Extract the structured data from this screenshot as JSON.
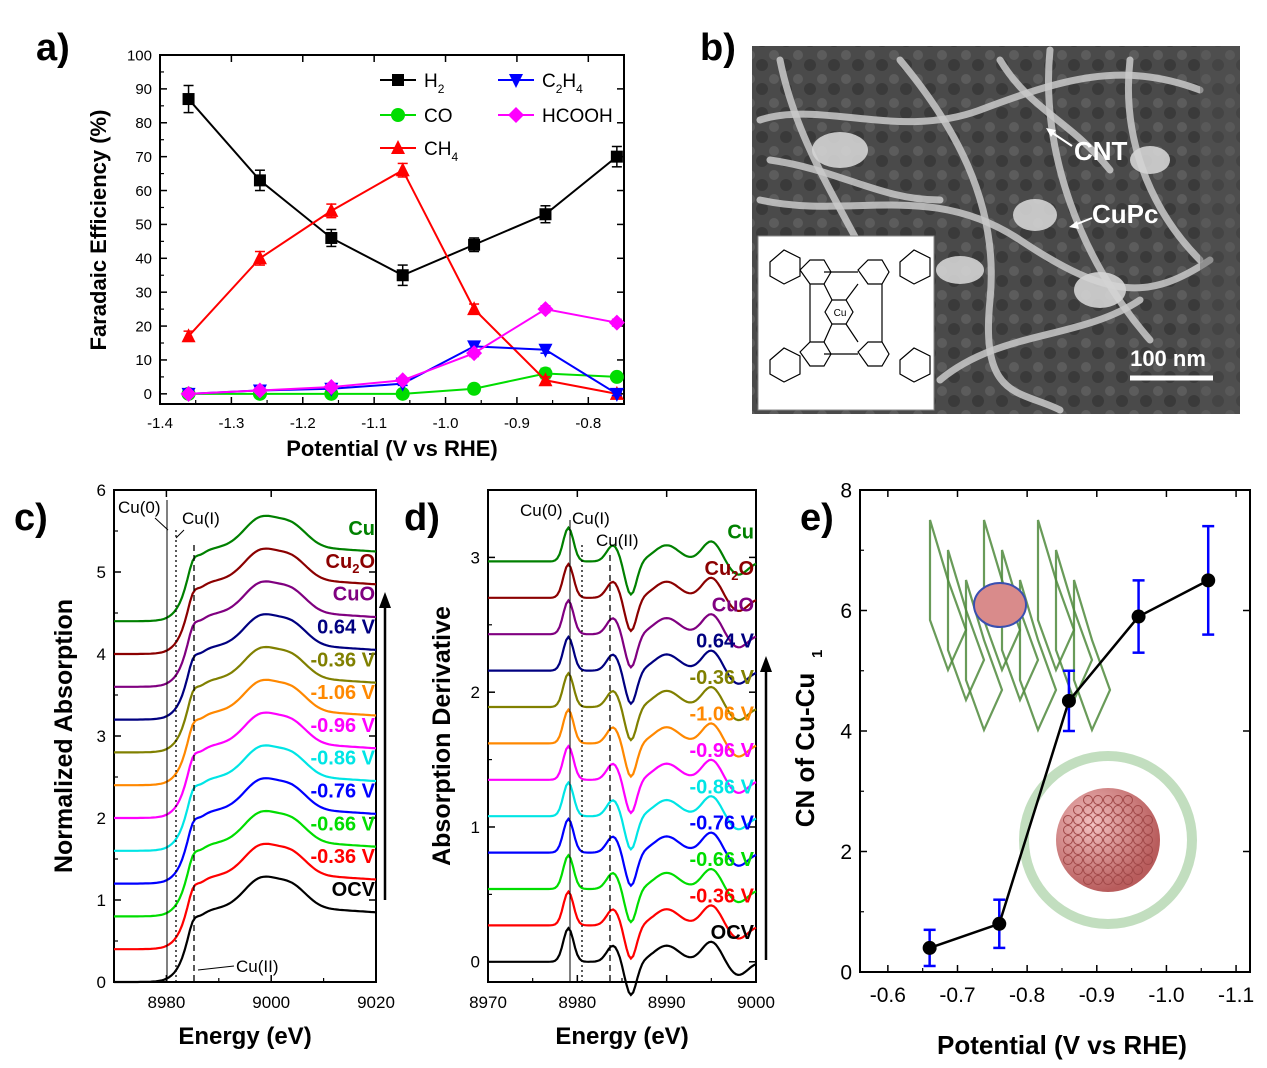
{
  "panels": {
    "a": {
      "letter": "a)"
    },
    "b": {
      "letter": "b)",
      "label_cnt": "CNT",
      "label_cupc": "CuPc",
      "scalebar": "100 nm",
      "inset_center": "Cu"
    },
    "c": {
      "letter": "c)",
      "annotations": [
        "Cu(0)",
        "Cu(I)",
        "Cu(II)"
      ]
    },
    "d": {
      "letter": "d)",
      "annotations": [
        "Cu(0)",
        "Cu(I)",
        "Cu(II)"
      ]
    },
    "e": {
      "letter": "e)"
    }
  },
  "chart_data": [
    {
      "panel": "a",
      "type": "line",
      "xlabel": "Potential (V vs RHE)",
      "ylabel": "Faradaic Efficiency (%)",
      "xlim": [
        -1.4,
        -0.75
      ],
      "ylim": [
        -3,
        100
      ],
      "xticks": [
        "-1.4",
        "-1.3",
        "-1.2",
        "-1.1",
        "-1.0",
        "-0.9",
        "-0.8"
      ],
      "yticks": [
        "0",
        "10",
        "20",
        "30",
        "40",
        "50",
        "60",
        "70",
        "80",
        "90",
        "100"
      ],
      "x": [
        -1.36,
        -1.26,
        -1.16,
        -1.06,
        -0.96,
        -0.86,
        -0.76
      ],
      "legend": "top-right",
      "series": [
        {
          "name": "H",
          "sub": "2",
          "color": "#000000",
          "marker": "square",
          "values": [
            87,
            63,
            46,
            35,
            44,
            53,
            70
          ],
          "err": [
            4,
            3,
            2.5,
            3,
            2,
            2.5,
            3
          ]
        },
        {
          "name": "CO",
          "sub": "",
          "color": "#00dd00",
          "marker": "circle",
          "values": [
            0,
            0,
            0,
            0,
            1.5,
            6,
            5
          ],
          "err": [
            0.5,
            0.5,
            0.5,
            0.5,
            1,
            1.5,
            1
          ]
        },
        {
          "name": "CH",
          "sub": "4",
          "color": "#ff0000",
          "marker": "triangle-up",
          "values": [
            17,
            40,
            54,
            66,
            25,
            4,
            0
          ],
          "err": [
            1.5,
            2,
            2,
            2,
            1.5,
            1,
            0.5
          ]
        },
        {
          "name": "C",
          "sub": "2",
          "name2": "H",
          "sub2": "4",
          "color": "#0000ff",
          "marker": "triangle-down",
          "values": [
            0,
            1,
            1.5,
            3,
            14,
            13,
            0
          ],
          "err": [
            0.5,
            0.5,
            0.5,
            0.5,
            1,
            1,
            0.5
          ]
        },
        {
          "name": "HCOOH",
          "sub": "",
          "color": "#ff00ff",
          "marker": "diamond",
          "values": [
            0,
            1,
            2,
            4,
            12,
            25,
            21
          ],
          "err": [
            0.5,
            0.5,
            0.5,
            0.5,
            1,
            1,
            1
          ]
        }
      ]
    },
    {
      "panel": "c",
      "type": "line",
      "xlabel": "Energy (eV)",
      "ylabel": "Normalized Absorption",
      "xlim": [
        8970,
        9020
      ],
      "ylim": [
        0,
        6
      ],
      "xticks": [
        "8980",
        "9000",
        "9020"
      ],
      "yticks": [
        "0",
        "1",
        "2",
        "3",
        "4",
        "5",
        "6"
      ],
      "series": [
        {
          "name": "OCV",
          "color": "#000000",
          "offset": 0.0
        },
        {
          "name": "-0.36 V",
          "color": "#ff0000",
          "offset": 0.4
        },
        {
          "name": "-0.66 V",
          "color": "#00dd00",
          "offset": 0.8
        },
        {
          "name": "-0.76 V",
          "color": "#0000ff",
          "offset": 1.2
        },
        {
          "name": "-0.86 V",
          "color": "#00e5e5",
          "offset": 1.6
        },
        {
          "name": "-0.96 V",
          "color": "#ff00ff",
          "offset": 2.0
        },
        {
          "name": "-1.06 V",
          "color": "#ff8800",
          "offset": 2.4
        },
        {
          "name": "-0.36 V",
          "color": "#808000",
          "offset": 2.8
        },
        {
          "name": "0.64 V",
          "color": "#000080",
          "offset": 3.2
        },
        {
          "name": "CuO",
          "color": "#800080",
          "offset": 3.6
        },
        {
          "name": "Cu",
          "sub": "2",
          "name2": "O",
          "color": "#8b0000",
          "offset": 4.0
        },
        {
          "name": "Cu",
          "color": "#008000",
          "offset": 4.4
        }
      ]
    },
    {
      "panel": "d",
      "type": "line",
      "xlabel": "Energy (eV)",
      "ylabel": "Absorption Derivative",
      "xlim": [
        8970,
        9000
      ],
      "ylim": [
        -0.15,
        3.5
      ],
      "xticks": [
        "8970",
        "8980",
        "8990",
        "9000"
      ],
      "yticks": [
        "0",
        "1",
        "2",
        "3"
      ],
      "series": [
        {
          "name": "OCV",
          "color": "#000000",
          "offset": 0.0
        },
        {
          "name": "-0.36 V",
          "color": "#ff0000",
          "offset": 0.27
        },
        {
          "name": "-0.66 V",
          "color": "#00dd00",
          "offset": 0.54
        },
        {
          "name": "-0.76 V",
          "color": "#0000ff",
          "offset": 0.81
        },
        {
          "name": "-0.86 V",
          "color": "#00e5e5",
          "offset": 1.08
        },
        {
          "name": "-0.96 V",
          "color": "#ff00ff",
          "offset": 1.35
        },
        {
          "name": "-1.06 V",
          "color": "#ff8800",
          "offset": 1.62
        },
        {
          "name": "-0.36 V",
          "color": "#808000",
          "offset": 1.89
        },
        {
          "name": "0.64 V",
          "color": "#000080",
          "offset": 2.16
        },
        {
          "name": "CuO",
          "color": "#800080",
          "offset": 2.43
        },
        {
          "name": "Cu",
          "sub": "2",
          "name2": "O",
          "color": "#8b0000",
          "offset": 2.7
        },
        {
          "name": "Cu",
          "color": "#008000",
          "offset": 2.97
        }
      ]
    },
    {
      "panel": "e",
      "type": "line",
      "xlabel": "Potential (V vs RHE)",
      "ylabel": "CN of Cu-Cu",
      "ylabel_sub": "1",
      "xlim": [
        -0.56,
        -1.12
      ],
      "ylim": [
        0,
        8
      ],
      "xticks": [
        "-0.6",
        "-0.7",
        "-0.8",
        "-0.9",
        "-1.0",
        "-1.1"
      ],
      "yticks": [
        "0",
        "2",
        "4",
        "6",
        "8"
      ],
      "x": [
        -0.66,
        -0.76,
        -0.86,
        -0.96,
        -1.06
      ],
      "values": [
        0.4,
        0.8,
        4.5,
        5.9,
        6.5
      ],
      "err": [
        0.3,
        0.4,
        0.5,
        0.6,
        0.9
      ],
      "color": "#000000",
      "err_color": "#0000ff"
    }
  ]
}
